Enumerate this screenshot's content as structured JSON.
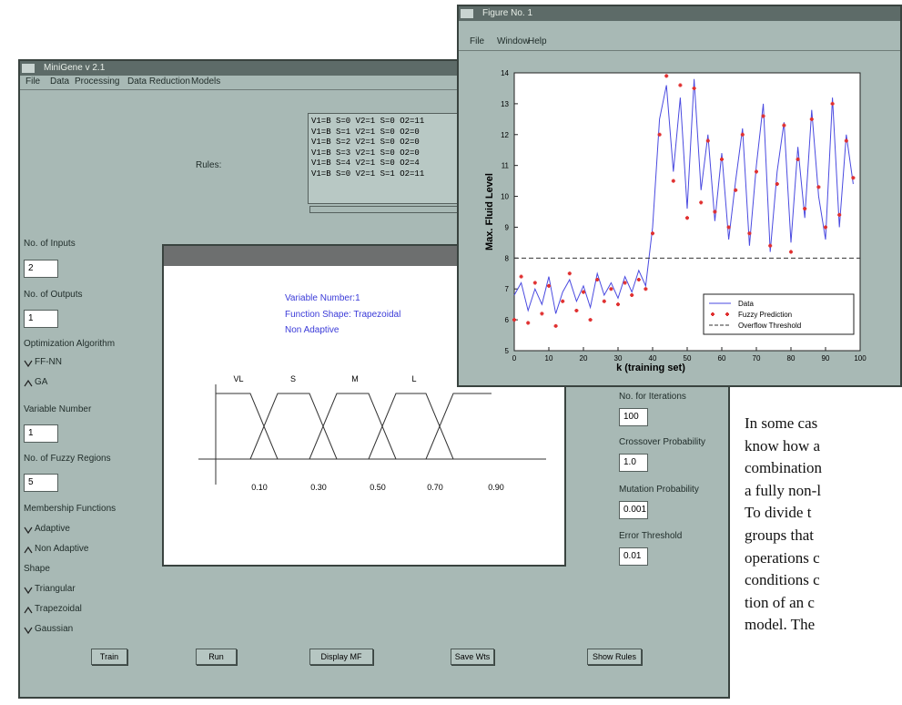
{
  "main_window": {
    "title": "MiniGene v 2.1",
    "menu": [
      "File",
      "Data",
      "Processing",
      "Data Reduction",
      "Models"
    ],
    "rules_label": "Rules:",
    "rules": [
      "V1=B S=0 V2=1 S=0 O2=11",
      "V1=B S=1 V2=1 S=0 O2=0",
      "V1=B S=2 V2=1 S=0 O2=0",
      "V1=B S=3 V2=1 S=0 O2=0",
      "V1=B S=4 V2=1 S=0 O2=4",
      "V1=B S=0 V2=1 S=1 O2=11"
    ],
    "left_panel": {
      "inputs_label": "No. of Inputs",
      "inputs": "2",
      "outputs_label": "No. of Outputs",
      "outputs": "1",
      "algorithm_label": "Optimization Algorithm",
      "algorithm_options": [
        "FF-NN",
        "GA"
      ],
      "variable_label": "Variable Number",
      "variable": "1",
      "regions_label": "No. of Fuzzy Regions",
      "regions": "5",
      "mf_label": "Membership Functions",
      "mf_options": [
        "Adaptive",
        "Non Adaptive"
      ],
      "shape_label": "Shape",
      "shape_options": [
        "Triangular",
        "Trapezoidal",
        "Gaussian"
      ]
    },
    "right_panel": [
      {
        "label": "No. for Iterations",
        "value": "100"
      },
      {
        "label": "Crossover Probability",
        "value": "1.0"
      },
      {
        "label": "Mutation Probability",
        "value": "0.001"
      },
      {
        "label": "Error Threshold",
        "value": "0.01"
      }
    ],
    "buttons": [
      "Train",
      "Run",
      "Display MF",
      "Save Wts",
      "Show Rules"
    ]
  },
  "mf_window": {
    "info": [
      "Variable Number:1",
      "Function Shape: Trapezoidal",
      "Non Adaptive"
    ],
    "region_labels": [
      "VL",
      "S",
      "M",
      "L"
    ],
    "axis_labels": [
      "0.10",
      "0.30",
      "0.50",
      "0.70",
      "0.90"
    ]
  },
  "figure_window": {
    "title": "Figure No. 1",
    "menu": [
      "File",
      "Window",
      "Help"
    ],
    "chart_data": {
      "type": "line",
      "xlabel": "k (training set)",
      "ylabel": "Max. Fluid Level",
      "xlim": [
        0,
        100
      ],
      "ylim": [
        5,
        14
      ],
      "xticks": [
        0,
        10,
        20,
        30,
        40,
        50,
        60,
        70,
        80,
        90,
        100
      ],
      "yticks": [
        5,
        6,
        7,
        8,
        9,
        10,
        11,
        12,
        13,
        14
      ],
      "legend": "lower right",
      "series": [
        {
          "name": "Data",
          "color": "#4a4ae0",
          "style": "solid",
          "x": [
            0,
            2,
            4,
            6,
            8,
            10,
            12,
            14,
            16,
            18,
            20,
            22,
            24,
            26,
            28,
            30,
            32,
            34,
            36,
            38,
            40,
            42,
            44,
            46,
            48,
            50,
            52,
            54,
            56,
            58,
            60,
            62,
            64,
            66,
            68,
            70,
            72,
            74,
            76,
            78,
            80,
            82,
            84,
            86,
            88,
            90,
            92,
            94,
            96,
            98
          ],
          "values": [
            6.8,
            7.2,
            6.3,
            7.0,
            6.5,
            7.4,
            6.2,
            6.9,
            7.3,
            6.6,
            7.1,
            6.4,
            7.5,
            6.8,
            7.2,
            6.7,
            7.4,
            6.9,
            7.6,
            7.1,
            9.0,
            12.5,
            13.6,
            10.8,
            13.2,
            9.6,
            13.8,
            10.2,
            12.0,
            9.2,
            11.4,
            8.6,
            10.5,
            12.2,
            8.4,
            11.0,
            13.0,
            8.2,
            10.8,
            12.4,
            8.5,
            11.6,
            9.3,
            12.8,
            10.0,
            8.6,
            13.2,
            9.0,
            12.0,
            10.4
          ]
        },
        {
          "name": "Fuzzy Prediction",
          "color": "#e03030",
          "style": "markers",
          "x": [
            0,
            2,
            4,
            6,
            8,
            10,
            12,
            14,
            16,
            18,
            20,
            22,
            24,
            26,
            28,
            30,
            32,
            34,
            36,
            38,
            40,
            42,
            44,
            46,
            48,
            50,
            52,
            54,
            56,
            58,
            60,
            62,
            64,
            66,
            68,
            70,
            72,
            74,
            76,
            78,
            80,
            82,
            84,
            86,
            88,
            90,
            92,
            94,
            96,
            98
          ],
          "values": [
            6.0,
            7.4,
            5.9,
            7.2,
            6.2,
            7.1,
            5.8,
            6.6,
            7.5,
            6.3,
            6.9,
            6.0,
            7.3,
            6.6,
            7.0,
            6.5,
            7.2,
            6.8,
            7.3,
            7.0,
            8.8,
            12.0,
            13.9,
            10.5,
            13.6,
            9.3,
            13.5,
            9.8,
            11.8,
            9.5,
            11.2,
            9.0,
            10.2,
            12.0,
            8.8,
            10.8,
            12.6,
            8.4,
            10.4,
            12.3,
            8.2,
            11.2,
            9.6,
            12.5,
            10.3,
            9.0,
            13.0,
            9.4,
            11.8,
            10.6
          ]
        },
        {
          "name": "Overflow Threshold",
          "color": "#333333",
          "style": "dashed",
          "x": [
            0,
            100
          ],
          "values": [
            8,
            8
          ]
        }
      ]
    }
  },
  "text_excerpt": {
    "lines": [
      "In some cas",
      "know how a",
      "combination",
      "a fully non-l",
      "To divide t",
      "groups that",
      "operations c",
      "conditions c",
      "tion of an c",
      "model. The"
    ]
  }
}
